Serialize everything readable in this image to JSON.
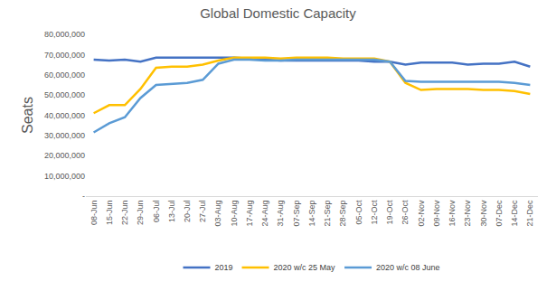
{
  "chart_data": {
    "type": "line",
    "title": "Global Domestic Capacity",
    "y_label": "Seats",
    "categories": [
      "08-Jun",
      "15-Jun",
      "22-Jun",
      "29-Jun",
      "06-Jul",
      "13-Jul",
      "20-Jul",
      "27-Jul",
      "03-Aug",
      "10-Aug",
      "17-Aug",
      "24-Aug",
      "31-Aug",
      "07-Sep",
      "14-Sep",
      "21-Sep",
      "28-Sep",
      "05-Oct",
      "12-Oct",
      "19-Oct",
      "26-Oct",
      "02-Nov",
      "09-Nov",
      "16-Nov",
      "23-Nov",
      "30-Nov",
      "07-Dec",
      "14-Dec",
      "21-Dec"
    ],
    "series": [
      {
        "name": "2019",
        "color": "#4472c4",
        "values": [
          67500000,
          67000000,
          67500000,
          66500000,
          68500000,
          68500000,
          68500000,
          68500000,
          68500000,
          68500000,
          68000000,
          67500000,
          67000000,
          67000000,
          67000000,
          67000000,
          67000000,
          67000000,
          66500000,
          66500000,
          65000000,
          66000000,
          66000000,
          66000000,
          65000000,
          65500000,
          65500000,
          66500000,
          64000000
        ]
      },
      {
        "name": "2020 w/c 25 May",
        "color": "#ffc000",
        "values": [
          41000000,
          45000000,
          45000000,
          53000000,
          63500000,
          64000000,
          64000000,
          65000000,
          67000000,
          68500000,
          68500000,
          68500000,
          68000000,
          68500000,
          68500000,
          68500000,
          68000000,
          68000000,
          68000000,
          66500000,
          56000000,
          52500000,
          53000000,
          53000000,
          53000000,
          52500000,
          52500000,
          52000000,
          50500000
        ]
      },
      {
        "name": "2020 w/c 08 June",
        "color": "#5b9bd5",
        "values": [
          31500000,
          36000000,
          39000000,
          48500000,
          55000000,
          55500000,
          56000000,
          57500000,
          65500000,
          67500000,
          67500000,
          67000000,
          67000000,
          67500000,
          67500000,
          67500000,
          67500000,
          67500000,
          67500000,
          66500000,
          57000000,
          56500000,
          56500000,
          56500000,
          56500000,
          56500000,
          56500000,
          56000000,
          55000000
        ]
      }
    ],
    "ylim": [
      0,
      80000000
    ],
    "yticks": [
      {
        "value": 0,
        "label": "-"
      },
      {
        "value": 10000000,
        "label": "10,000,000"
      },
      {
        "value": 20000000,
        "label": "20,000,000"
      },
      {
        "value": 30000000,
        "label": "30,000,000"
      },
      {
        "value": 40000000,
        "label": "40,000,000"
      },
      {
        "value": 50000000,
        "label": "50,000,000"
      },
      {
        "value": 60000000,
        "label": "60,000,000"
      },
      {
        "value": 70000000,
        "label": "70,000,000"
      },
      {
        "value": 80000000,
        "label": "80,000,000"
      }
    ],
    "grid": false,
    "legend": "bottom"
  }
}
